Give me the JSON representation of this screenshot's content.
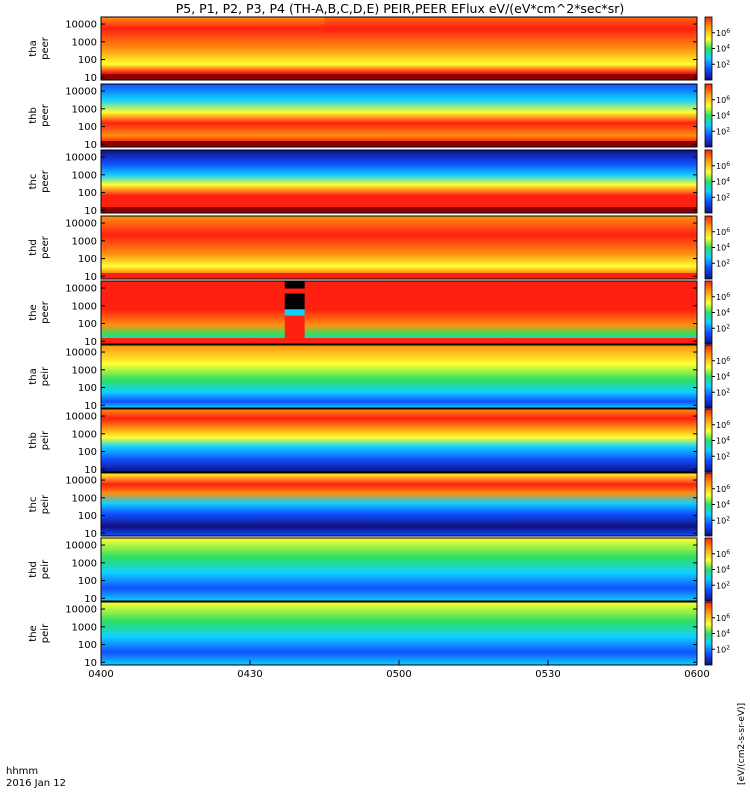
{
  "chart_data": {
    "type": "heatmap",
    "title": "P5, P1, P2, P3, P4 (TH-A,B,C,D,E) PEIR,PEER EFlux eV/(eV*cm^2*sec*sr)",
    "xlabel": "hhmm",
    "date_label": "2016 Jan 12",
    "x_ticks": [
      "0400",
      "0430",
      "0500",
      "0530",
      "0600"
    ],
    "x_range": [
      "04:00",
      "06:00"
    ],
    "y_scale": "log",
    "y_ticks": [
      "10",
      "100",
      "1000",
      "10000"
    ],
    "colorbar_scale": "log",
    "colorbar_tick_labels": [
      "10^2",
      "10^4",
      "10^6"
    ],
    "colorbar_label": "[eV/(cm2-s-sr-eV)]",
    "colors": {
      "very_low": "#101080",
      "low": "#1050ff",
      "mid_low": "#10d0ff",
      "mid": "#30e060",
      "mid_high": "#ffff30",
      "high": "#ff9010",
      "very_high": "#ff2010",
      "max": "#8b0000",
      "black": "#000000",
      "white": "#ffffff"
    },
    "panels": [
      {
        "probe": "tha",
        "species": "peer",
        "label": "tha peer",
        "bottom_band": "dark-red",
        "event_time": "04:45"
      },
      {
        "probe": "thb",
        "species": "peer",
        "label": "thb peer",
        "bottom_band": "dark-red"
      },
      {
        "probe": "thc",
        "species": "peer",
        "label": "thc peer",
        "bottom_band": "dark-red"
      },
      {
        "probe": "thd",
        "species": "peer",
        "label": "thd peer",
        "bottom_band": "red"
      },
      {
        "probe": "the",
        "species": "peer",
        "label": "the peer",
        "bottom_band": "red",
        "data_gap": [
          "04:37",
          "04:41"
        ],
        "event_time": "04:46"
      },
      {
        "probe": "tha",
        "species": "peir",
        "label": "tha peir"
      },
      {
        "probe": "thb",
        "species": "peir",
        "label": "thb peir"
      },
      {
        "probe": "thc",
        "species": "peir",
        "label": "thc peir"
      },
      {
        "probe": "thd",
        "species": "peir",
        "label": "thd peir"
      },
      {
        "probe": "the",
        "species": "peir",
        "label": "the peir"
      }
    ]
  }
}
